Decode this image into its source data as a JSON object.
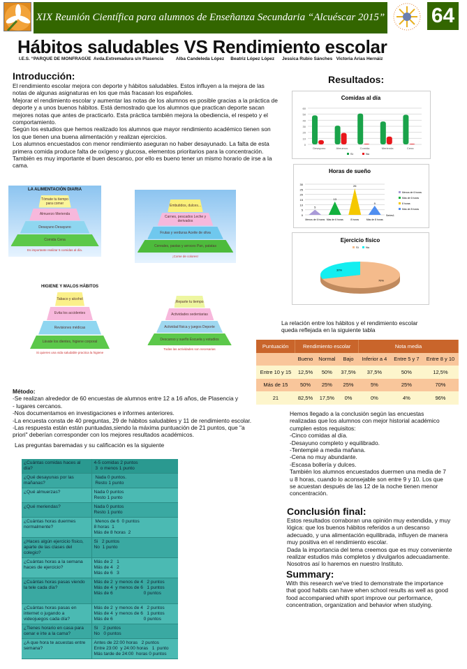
{
  "header": {
    "banner": "XIX Reunión Científica para alumnos de Enseñanza Secundaria “Alcuéscar 2015”",
    "poster_number": "64"
  },
  "title": "Hábitos saludables  VS Rendimiento escolar",
  "subtitle": "I.E.S. “PARQUE DE MONFRAGÜE  Avda.Extremadura s/n Plasencia          Alba Candeleda López     Beatriz López López      Jessica Rubio Sánches   Victoria Arias Hernáiz",
  "intro": {
    "heading": "Introducción:",
    "paragraphs": [
      "El rendimiento escolar mejora con deporte y hábitos saludables. Estos influyen a la mejora de las notas de algunas asignaturas en los que más fracasan los españoles.",
      "Mejorar el rendimiento escolar y aumentar las notas de los alumnos es posible gracias a la práctica de deporte y a unos buenos hábitos. Está demostrado que los alumnos que practican deporte sacan mejores notas que antes de  practicarlo. Esta práctica también mejora la obediencia, el respeto y el comportamiento.",
      "Según los estudios que hemos realizado los alumnos que mayor rendimiento académico tienen son los que tienen una buena alimentación y realizan ejercicios.",
      "Los alumnos encuestados con menor rendimiento aseguran no haber desayunado. La falta de esta primera comida produce falta de oxígeno y glucosa, elementos prioritarios para la concentración. También es muy importante el buen descanso, por ello es bueno tener un mismo horario de irse a la cama."
    ]
  },
  "images": [
    {
      "title": "LA ALIMENTACIÓN DIARIA",
      "levels": [
        "Tómate tu tiempo para comer",
        "Almuerzo  Merienda",
        "Desayuno  Desayuno",
        "Comida  Cena"
      ],
      "caption": "Es importante realizar 5 comidas al día."
    },
    {
      "title": "",
      "levels": [
        "Embutidos, dulces...",
        "Carnes, pescados  Leche y derivados",
        "Frutas y verduras  Aceite de oliva",
        "Cereales, pastas y arroces  Pan, patatas"
      ],
      "caption": "¡Come de colores!"
    },
    {
      "title": "HIGIENE Y MALOS HÁBITOS",
      "levels": [
        "Tabaco y alcohol",
        "Evita los accidentes",
        "Revisiones médicas",
        "Lávate los dientes, higiene corporal"
      ],
      "caption": "Si quieres una vida saludable practica la higiene"
    },
    {
      "title": "",
      "levels": [
        "¡Reparte tu tiempo!",
        "Actividades sedentarias",
        "Actividad física y juegos  Deporte",
        "Descanso y sueño  Escuela y estudios"
      ],
      "caption": "Todas las actividades son necesarias"
    }
  ],
  "results": {
    "heading": "Resultados:",
    "relation_text": "La relación entre los hábitos y el rendimiento escolar queda reflejada en la  siguiente tabla"
  },
  "chart_data": [
    {
      "type": "bar",
      "title": "Comidas al día",
      "categories": [
        "Desayuno",
        "Almuerzo",
        "Comida",
        "Merienda",
        "Cena"
      ],
      "series": [
        {
          "name": "Sí",
          "values": [
            48,
            31,
            51,
            38,
            49
          ],
          "color": "#1aa34a"
        },
        {
          "name": "No",
          "values": [
            7,
            19,
            1,
            13,
            1
          ],
          "color": "#e8161b"
        }
      ],
      "ylim": [
        0,
        60
      ],
      "yticks": [
        0,
        10,
        20,
        30,
        40,
        50,
        60
      ],
      "legend": "bottom",
      "grid": true
    },
    {
      "type": "bar",
      "title": "Horas de sueño",
      "categories": [
        "Menos de 6 horas",
        "Más de 6 horas",
        "8 horas",
        "Más de 8 horas"
      ],
      "values": [
        5,
        13,
        26,
        9
      ],
      "colors": [
        "#a99ad8",
        "#13b13e",
        "#f5c800",
        "#4f8ef0"
      ],
      "series_label": "Series1",
      "legend_entries": [
        "Menos de 6 horas",
        "Más de 6 horas",
        "8 horas",
        "Más de 8 horas"
      ],
      "ylim": [
        0,
        30
      ],
      "yticks": [
        0,
        5,
        10,
        15,
        20,
        25,
        30
      ],
      "legend": "right",
      "grid": true
    },
    {
      "type": "pie",
      "title": "Ejercicio físico",
      "labels": [
        "Sí",
        "No"
      ],
      "values": [
        70,
        30
      ],
      "value_labels": [
        "70%",
        "30%"
      ],
      "colors": [
        "#f4bb8c",
        "#14eef0"
      ],
      "legend": "top"
    }
  ],
  "score_table": {
    "headers": [
      "Puntuación",
      "Rendimiento escolar",
      "Nota media"
    ],
    "subheaders": [
      "",
      "Bueno",
      "Normal",
      "Bajo",
      "Inferior a  4",
      "Entre 5 y 7",
      "Entre 8 y 10"
    ],
    "rows": [
      [
        "Entre 10 y 15",
        "12,5%",
        "50%",
        "37,5%",
        "37,5%",
        "50%",
        "12,5%"
      ],
      [
        "Más de 15",
        "50%",
        "25%",
        "25%",
        "5%",
        "25%",
        "70%"
      ],
      [
        "21",
        "82,5%",
        "17,5%",
        "0%",
        "0%",
        "4%",
        "96%"
      ]
    ]
  },
  "method": {
    "heading": "Método:",
    "lines": [
      "-Se realizan alrededor de 60 encuestas de alumnos entre 12 a 16 años, de Plasencia y",
      "- lugares cercanos.",
      "-Nos documentamos en investigaciones e informes anteriores.",
      "-La encuesta consta de 40 preguntas, 29 de hábitos saludables y 11 de rendimiento escolar.",
      "-Las respuesta están están puntuadas,siendo la máxima    puntuación de 21 puntos, que \"a priori\" deberían corresponder con  los mejores resultados académicos."
    ],
    "intro_table": "Las preguntas baremadas y su calificación es la siguiente"
  },
  "questions": [
    [
      "¿Cuántas  comidas haces al día?",
      "4-5 comidas 2 puntos\n 3  o menos 1 punto"
    ],
    [
      "¿Qué desayunas por las mañanas?",
      " Nada 0 puntos.\n Resto 1 punto"
    ],
    [
      "¿Qué almuerzas?",
      "Nada 0 puntos\nResto 1 punto"
    ],
    [
      "¿Qué meriendas?",
      "Nada 0 puntos\nResto 1 punto"
    ],
    [
      "¿Cuántas horas duermes normalmente?",
      " Menos de 6  0 puntos\n8 horas  1\nMás de 8 horas  2"
    ],
    [
      "¿Haces algún ejercicio físico, aparte de las clases del colegio?",
      "Si   2 puntos\nNo  1 punto"
    ],
    [
      "¿Cuántas horas a la semana haces de ejercicio?",
      "Más de 2   1\nMás de 4   2\nMás de 6   3"
    ],
    [
      "¿Cuántas horas pasas viendo la tele cada día?",
      "Más de 2  y menos de 4   2 puntos\nMás de 4  y menos de 6   1 puntos\nMás de 6                        0 puntos\n "
    ],
    [
      "¿Cuántas horas pasas en internet o jugando a videojuegos cada día?",
      "Más de 2  y menos de 4   2 puntos\nMás de 4  y menos de 6   1 puntos\nMás de 6                        0 puntos"
    ],
    [
      " ¿Tienes horario en casa para cenar e irte a la cama?",
      "Si    2 puntos\nNo   0 puntos"
    ],
    [
      "¿A que hora te acuestas entre semana?",
      "Antes de 22:00 horas   2 puntos\nEntre 23:00  y 24:00 horas   1  punto\nMás tarde de 24:00  horas 0 puntos"
    ]
  ],
  "findings": {
    "intro": "Hemos llegado a la conclusión según las encuestas realizadas que los alumnos con mejor historial académico cumplen estos requisitos:",
    "items": [
      "-Cinco comidas al día.",
      "-Desayuno completo y equilibrado.",
      "-Tentempié a media mañana.",
      "-Cena no muy abundante.",
      "-Escasa bollería y dulces."
    ],
    "sleep": "También los alumnos encuestados duermen una media de 7 u 8 horas, cuando lo aconsejable son entre 9 y 10. Los que se acuestan después de las 12 de la noche tienen menor concentración."
  },
  "conclusion": {
    "heading": "Conclusión final:",
    "paragraphs": [
      "Estos resultados corraboran una opinión muy extendida, y muy lógica: que los buenos hábitos referidos a un descanso adecuado, y una alimentación equilibrada, influyen de manera muy positiva en el rendimiento escolar.",
      "Dada la importancia del tema creemos que es muy conveniente realizar estudios más completos y divulgarlos adecuadamente. Nosotros así lo haremos en nuestro Instituto."
    ]
  },
  "summary": {
    "heading": "Summary:",
    "text": "With this research we've tried to demonstrate the importance that good habits can have when school results as well as good food accompanied whith sport improve our performance, concentration, organization and behavior when studying."
  }
}
